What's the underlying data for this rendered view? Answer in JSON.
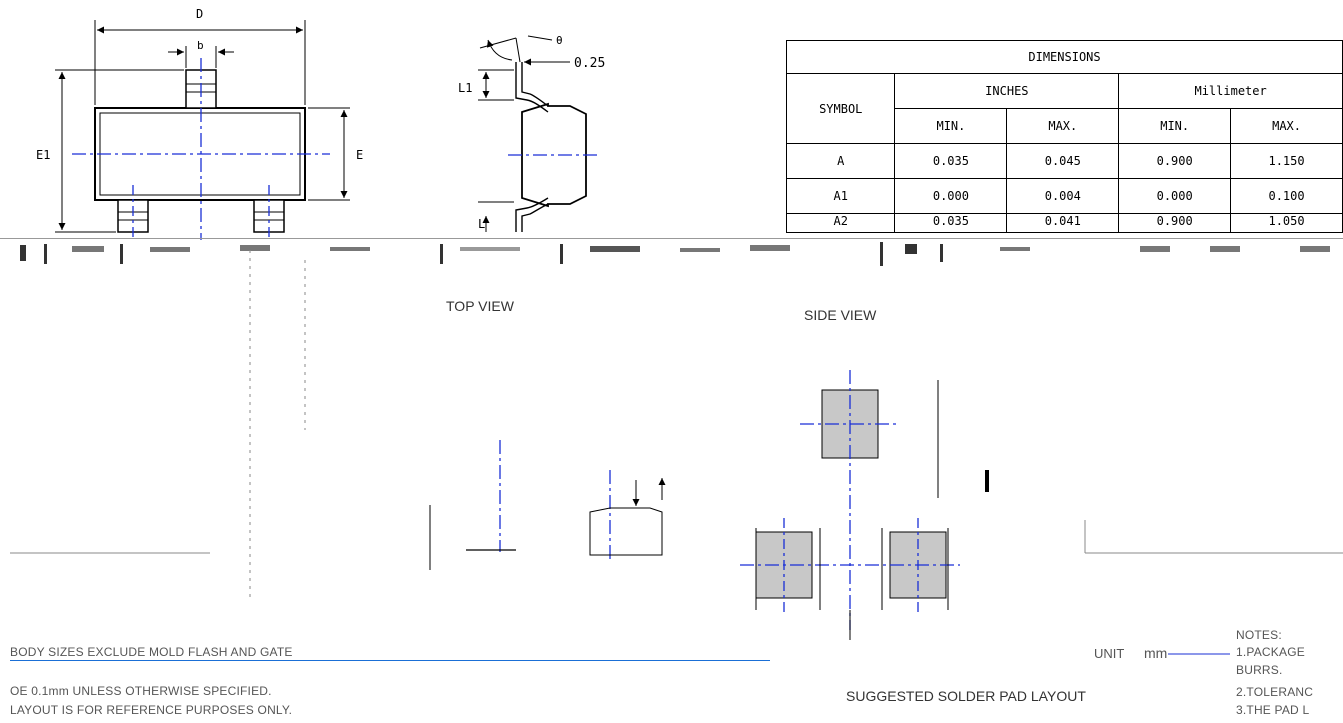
{
  "drawing": {
    "top_view": {
      "label": "TOP VIEW",
      "dim_D": "D",
      "dim_b": "b",
      "dim_E1": "E1",
      "dim_E": "E"
    },
    "side_view": {
      "label": "SIDE VIEW",
      "dim_theta": "θ",
      "dim_025": "0.25",
      "dim_L1": "L1",
      "dim_L": "L"
    },
    "solder_pad": {
      "label": "SUGGESTED SOLDER PAD LAYOUT",
      "unit_label": "UNIT",
      "unit_value": "mm"
    },
    "notes": {
      "line1": "BODY SIZES EXCLUDE MOLD FLASH AND GATE",
      "line2": "OE 0.1mm UNLESS OTHERWISE SPECIFIED.",
      "line3": "LAYOUT IS FOR REFERENCE PURPOSES ONLY.",
      "notes_title": "NOTES:",
      "note1": "1.PACKAGE",
      "note1b": "BURRS.",
      "note2": "2.TOLERANC",
      "note3": "3.THE PAD L"
    }
  },
  "dimensions_table": {
    "title": "DIMENSIONS",
    "symbol_header": "SYMBOL",
    "inches_header": "INCHES",
    "mm_header": "Millimeter",
    "min_label": "MIN.",
    "max_label": "MAX.",
    "rows": [
      {
        "symbol": "A",
        "in_min": "0.035",
        "in_max": "0.045",
        "mm_min": "0.900",
        "mm_max": "1.150"
      },
      {
        "symbol": "A1",
        "in_min": "0.000",
        "in_max": "0.004",
        "mm_min": "0.000",
        "mm_max": "0.100"
      },
      {
        "symbol": "A2",
        "in_min": "0.035",
        "in_max": "0.041",
        "mm_min": "0.900",
        "mm_max": "1.050"
      }
    ]
  },
  "colors": {
    "centerline": "#1a2fd6",
    "outline": "#000000",
    "pad_fill": "#c8c8c8"
  }
}
